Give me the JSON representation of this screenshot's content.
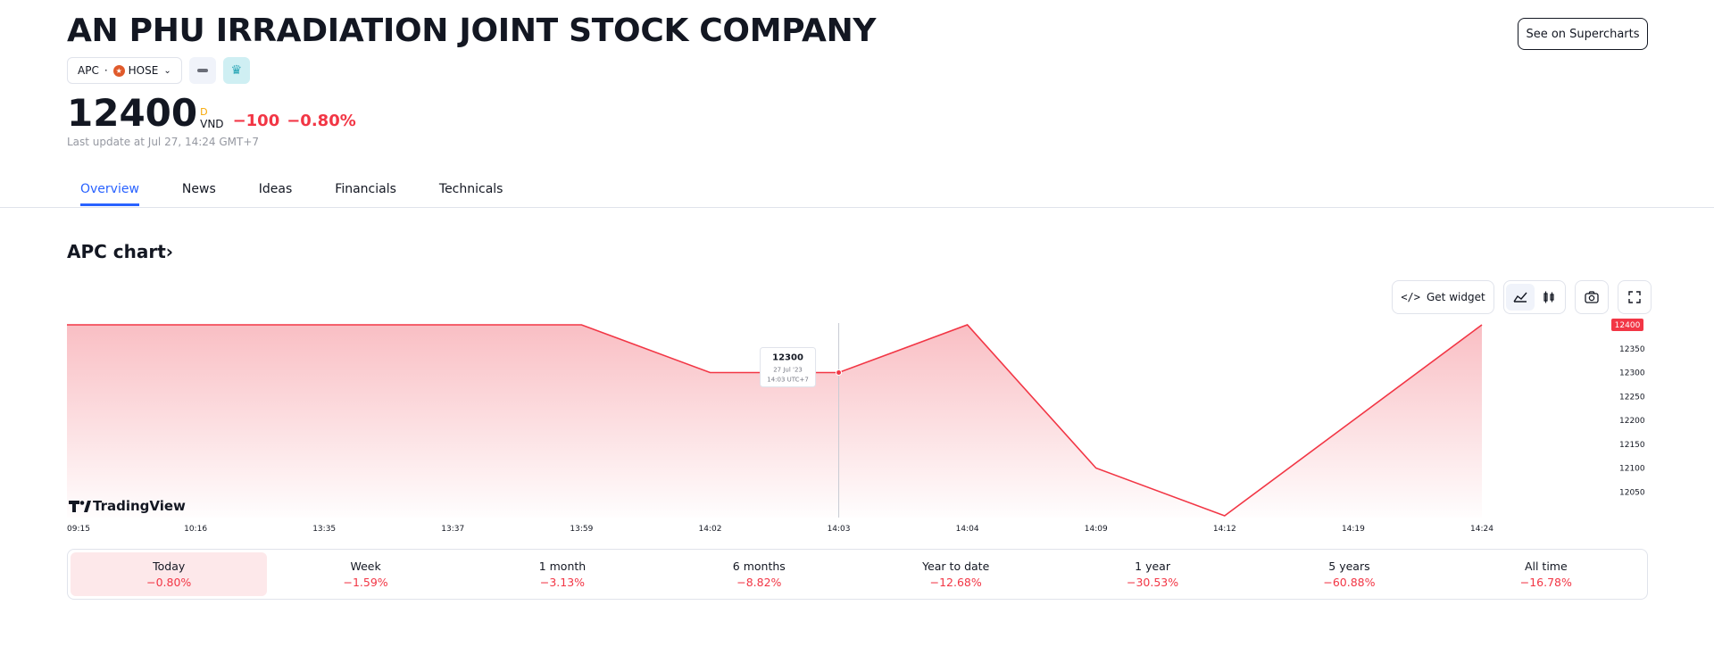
{
  "company": {
    "name": "AN PHU IRRADIATION JOINT STOCK COMPANY"
  },
  "symbol": {
    "ticker": "APC",
    "separator": "·",
    "exchange": "HOSE"
  },
  "header": {
    "see_on_supercharts": "See on Supercharts"
  },
  "quote": {
    "price": "12400",
    "currency_badge": "D",
    "currency": "VND",
    "change": "−100",
    "change_pct": "−0.80%",
    "last_update": "Last update at Jul 27, 14:24 GMT+7"
  },
  "tabs": [
    "Overview",
    "News",
    "Ideas",
    "Financials",
    "Technicals"
  ],
  "chart_section": {
    "title": "APC chart›",
    "get_widget": "Get widget",
    "logo": "TradingView"
  },
  "tooltip": {
    "value": "12300",
    "date": "27 Jul '23",
    "time": "14:03 UTC+7"
  },
  "chart_data": {
    "type": "area",
    "x": [
      "09:15",
      "10:16",
      "13:35",
      "13:37",
      "13:59",
      "14:02",
      "14:03",
      "14:04",
      "14:09",
      "14:12",
      "14:19",
      "14:24"
    ],
    "y": [
      12400,
      12400,
      12400,
      12400,
      12400,
      12300,
      12300,
      12400,
      12100,
      12000,
      12200,
      12400
    ],
    "y_ticks": [
      12050,
      12100,
      12150,
      12200,
      12250,
      12300,
      12350
    ],
    "last_value_label": "12400",
    "hover_index": 6,
    "ylim": [
      12000,
      12400
    ],
    "colors": {
      "line": "#f23645",
      "fill": "#f7a9b0",
      "last_label_bg": "#f23645"
    }
  },
  "ranges": [
    {
      "label": "Today",
      "change": "−0.80%"
    },
    {
      "label": "Week",
      "change": "−1.59%"
    },
    {
      "label": "1 month",
      "change": "−3.13%"
    },
    {
      "label": "6 months",
      "change": "−8.82%"
    },
    {
      "label": "Year to date",
      "change": "−12.68%"
    },
    {
      "label": "1 year",
      "change": "−30.53%"
    },
    {
      "label": "5 years",
      "change": "−60.88%"
    },
    {
      "label": "All time",
      "change": "−16.78%"
    }
  ]
}
